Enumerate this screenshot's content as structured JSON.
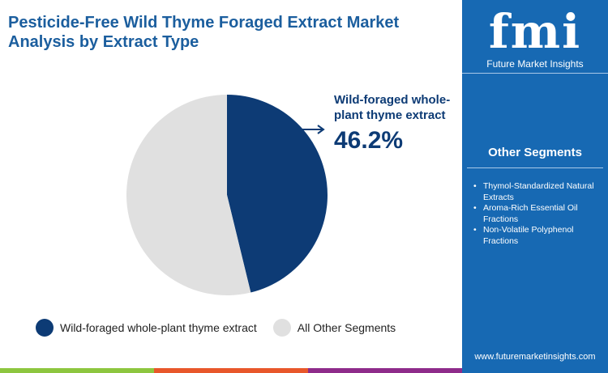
{
  "title": "Pesticide-Free Wild Thyme Foraged Extract Market Analysis by Extract Type",
  "logo": {
    "text": "fmi",
    "subtitle": "Future Market Insights"
  },
  "other_segments": {
    "title": "Other Segments",
    "items": [
      "Thymol-Standardized Natural Extracts",
      "Aroma-Rich Essential Oil Fractions",
      "Non-Volatile Polyphenol Fractions"
    ]
  },
  "url": "www.futuremarketinsights.com",
  "callout": {
    "label": "Wild-foraged whole-plant thyme extract",
    "value": "46.2%"
  },
  "colors": {
    "primary": "#0d3b75",
    "other": "#e0e0e0",
    "panel": "#1769b3"
  },
  "chart_data": {
    "type": "pie",
    "title": "Pesticide-Free Wild Thyme Foraged Extract Market Analysis by Extract Type",
    "labels": [
      "Wild-foraged whole-plant thyme extract",
      "All Other Segments"
    ],
    "values": [
      46.2,
      53.8
    ],
    "legend": "bottom"
  }
}
